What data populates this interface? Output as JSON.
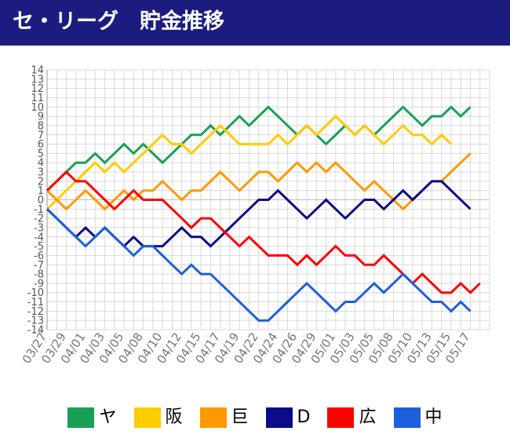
{
  "header": {
    "title": "セ・リーグ　貯金推移"
  },
  "chart_data": {
    "type": "line",
    "ylim": [
      -14,
      14
    ],
    "yticks": [
      14,
      13,
      12,
      11,
      10,
      9,
      8,
      7,
      6,
      5,
      4,
      3,
      2,
      1,
      0,
      -1,
      -2,
      -3,
      -4,
      -5,
      -6,
      -7,
      -8,
      -9,
      -10,
      -11,
      -12,
      -13,
      -14
    ],
    "x_tick_labels": [
      "03/27",
      "03/29",
      "04/01",
      "04/03",
      "04/05",
      "04/08",
      "04/10",
      "04/12",
      "04/15",
      "04/17",
      "04/19",
      "04/22",
      "04/24",
      "04/26",
      "04/29",
      "05/01",
      "05/03",
      "05/05",
      "05/08",
      "05/10",
      "05/13",
      "05/15",
      "05/17"
    ],
    "num_points": 47,
    "grid": true,
    "legend_position": "bottom",
    "series": [
      {
        "name": "ヤ",
        "color": "#1aa055",
        "values": [
          1,
          2,
          3,
          4,
          4,
          5,
          4,
          5,
          6,
          5,
          6,
          5,
          4,
          5,
          6,
          7,
          7,
          8,
          7,
          8,
          9,
          8,
          9,
          10,
          9,
          8,
          7,
          8,
          7,
          6,
          7,
          8,
          7,
          8,
          7,
          8,
          9,
          10,
          9,
          8,
          9,
          9,
          10,
          9,
          10,
          null,
          null
        ]
      },
      {
        "name": "阪",
        "color": "#ffcc00",
        "values": [
          -1,
          0,
          1,
          2,
          3,
          4,
          3,
          4,
          3,
          4,
          5,
          6,
          7,
          6,
          6,
          5,
          6,
          7,
          8,
          7,
          6,
          6,
          6,
          6,
          7,
          6,
          7,
          8,
          7,
          8,
          9,
          8,
          7,
          8,
          7,
          6,
          7,
          8,
          7,
          7,
          6,
          7,
          6,
          null,
          null,
          null,
          null
        ]
      },
      {
        "name": "巨",
        "color": "#ff9900",
        "values": [
          1,
          0,
          -1,
          0,
          1,
          0,
          -1,
          0,
          1,
          0,
          1,
          1,
          2,
          1,
          0,
          1,
          1,
          2,
          3,
          2,
          1,
          2,
          3,
          3,
          2,
          3,
          4,
          3,
          4,
          3,
          4,
          3,
          2,
          1,
          2,
          1,
          0,
          -1,
          0,
          1,
          2,
          2,
          3,
          4,
          5,
          null,
          null
        ]
      },
      {
        "name": "D",
        "color": "#0c0c88",
        "values": [
          -1,
          -2,
          -3,
          -4,
          -3,
          -4,
          -3,
          -4,
          -5,
          -4,
          -5,
          -5,
          -5,
          -4,
          -3,
          -4,
          -4,
          -5,
          -4,
          -3,
          -2,
          -1,
          0,
          0,
          1,
          0,
          -1,
          -2,
          -1,
          0,
          -1,
          -2,
          -1,
          0,
          0,
          -1,
          0,
          1,
          0,
          1,
          2,
          2,
          1,
          0,
          -1,
          null,
          null
        ]
      },
      {
        "name": "広",
        "color": "#ff0000",
        "values": [
          1,
          2,
          3,
          2,
          2,
          1,
          0,
          -1,
          0,
          1,
          0,
          0,
          0,
          -1,
          -2,
          -3,
          -2,
          -2,
          -3,
          -4,
          -5,
          -4,
          -5,
          -6,
          -6,
          -6,
          -7,
          -6,
          -7,
          -6,
          -5,
          -6,
          -6,
          -7,
          -7,
          -6,
          -7,
          -8,
          -9,
          -8,
          -9,
          -10,
          -10,
          -9,
          -10,
          -9,
          null
        ]
      },
      {
        "name": "中",
        "color": "#1e5fdc",
        "values": [
          -1,
          -2,
          -3,
          -4,
          -5,
          -4,
          -3,
          -4,
          -5,
          -6,
          -5,
          -5,
          -6,
          -7,
          -8,
          -7,
          -8,
          -8,
          -9,
          -10,
          -11,
          -12,
          -13,
          -13,
          -12,
          -11,
          -10,
          -9,
          -10,
          -11,
          -12,
          -11,
          -11,
          -10,
          -9,
          -10,
          -9,
          -8,
          -9,
          -10,
          -11,
          -11,
          -12,
          -11,
          -12,
          null,
          null
        ]
      }
    ]
  }
}
